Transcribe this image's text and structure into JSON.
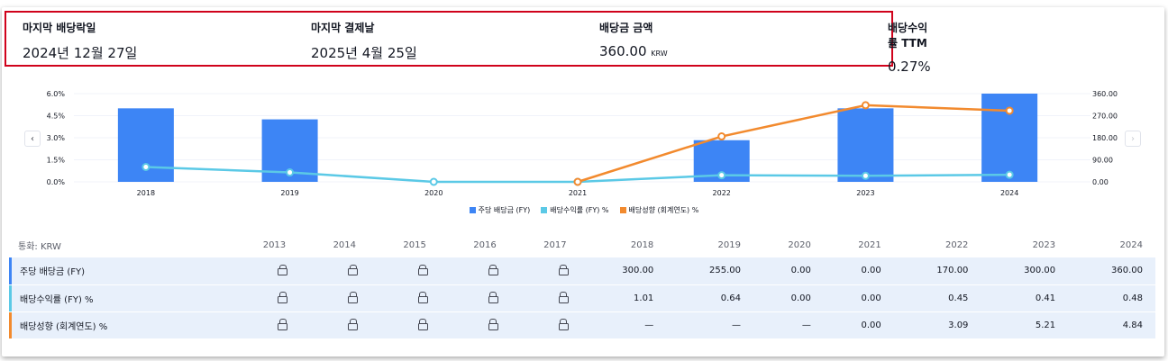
{
  "summary": [
    {
      "label": "마지막 배당락일",
      "value": "2024년 12월 27일",
      "unit": ""
    },
    {
      "label": "마지막 결제날",
      "value": "2025년 4월 25일",
      "unit": ""
    },
    {
      "label": "배당금 금액",
      "value": "360.00",
      "unit": "KRW"
    },
    {
      "label": "배당수익률 TTM",
      "value": "0.27%",
      "unit": ""
    }
  ],
  "nav": {
    "prev_icon": "chevron-left-icon",
    "next_icon": "chevron-right-icon",
    "prev_glyph": "‹",
    "next_glyph": "›"
  },
  "chart_data": {
    "type": "bar",
    "categories": [
      "2018",
      "2019",
      "2020",
      "2021",
      "2022",
      "2023",
      "2024"
    ],
    "left_axis": {
      "ticks": [
        "6.0%",
        "4.5%",
        "3.0%",
        "1.5%",
        "0.0%"
      ],
      "ylim": [
        0,
        6.0
      ]
    },
    "right_axis": {
      "ticks": [
        "360.00",
        "270.00",
        "180.00",
        "90.00",
        "0.00"
      ],
      "ylim": [
        0,
        360
      ]
    },
    "series": [
      {
        "name": "주당 배당금 (FY)",
        "type": "bar",
        "axis": "right",
        "color": "#3d85f5",
        "values": [
          300,
          255,
          0,
          0,
          170,
          300,
          360
        ]
      },
      {
        "name": "배당수익률 (FY) %",
        "type": "line",
        "axis": "left",
        "color": "#5bc9e6",
        "values": [
          1.01,
          0.64,
          0.0,
          0.0,
          0.45,
          0.41,
          0.48
        ]
      },
      {
        "name": "배당성향 (회계연도) %",
        "type": "line",
        "axis": "left",
        "color": "#f28a2e",
        "values": [
          null,
          null,
          null,
          0.0,
          3.09,
          5.21,
          4.84
        ]
      }
    ],
    "legend_position": "bottom-center",
    "grid": true
  },
  "table": {
    "currency_label": "통화: KRW",
    "years": [
      "2013",
      "2014",
      "2015",
      "2016",
      "2017",
      "2018",
      "2019",
      "2020",
      "2021",
      "2022",
      "2023",
      "2024"
    ],
    "rows": [
      {
        "label": "주당 배당금 (FY)",
        "color": "#3d85f5",
        "values": [
          "lock",
          "lock",
          "lock",
          "lock",
          "lock",
          "300.00",
          "255.00",
          "0.00",
          "0.00",
          "170.00",
          "300.00",
          "360.00"
        ]
      },
      {
        "label": "배당수익률 (FY) %",
        "color": "#5bc9e6",
        "values": [
          "lock",
          "lock",
          "lock",
          "lock",
          "lock",
          "1.01",
          "0.64",
          "0.00",
          "0.00",
          "0.45",
          "0.41",
          "0.48"
        ]
      },
      {
        "label": "배당성향 (회계연도) %",
        "color": "#f28a2e",
        "values": [
          "lock",
          "lock",
          "lock",
          "lock",
          "lock",
          "—",
          "—",
          "—",
          "0.00",
          "3.09",
          "5.21",
          "4.84"
        ]
      }
    ]
  }
}
